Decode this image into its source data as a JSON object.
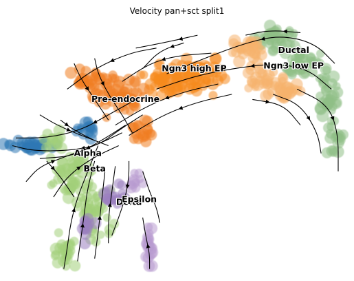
{
  "chart_data": {
    "type": "scatter",
    "title": "Velocity pan+sct split1",
    "xlabel": "",
    "ylabel": "",
    "axes_visible": false,
    "grid": false,
    "legend": "on data",
    "colors": {
      "Ductal": "#8fbf86",
      "Ngn3 low EP": "#f5b26e",
      "Ngn3 high EP": "#f58b1f",
      "Pre-endocrine": "#f07d22",
      "Alpha": "#2f78b5",
      "Beta": "#a3d07a",
      "Delta": "#9b7fc0",
      "Epsilon": "#b89ad0",
      "arrows": "#000000"
    },
    "clusters": [
      {
        "name": "Ductal",
        "label_x": 0.84,
        "label_y": 0.86
      },
      {
        "name": "Ngn3 low EP",
        "label_x": 0.84,
        "label_y": 0.8
      },
      {
        "name": "Ngn3 high EP",
        "label_x": 0.55,
        "label_y": 0.79
      },
      {
        "name": "Pre-endocrine",
        "label_x": 0.35,
        "label_y": 0.67
      },
      {
        "name": "Alpha",
        "label_x": 0.24,
        "label_y": 0.46
      },
      {
        "name": "Beta",
        "label_x": 0.26,
        "label_y": 0.4
      },
      {
        "name": "Delta",
        "label_x": 0.36,
        "label_y": 0.27
      },
      {
        "name": "Epsilon",
        "label_x": 0.39,
        "label_y": 0.28
      }
    ]
  }
}
